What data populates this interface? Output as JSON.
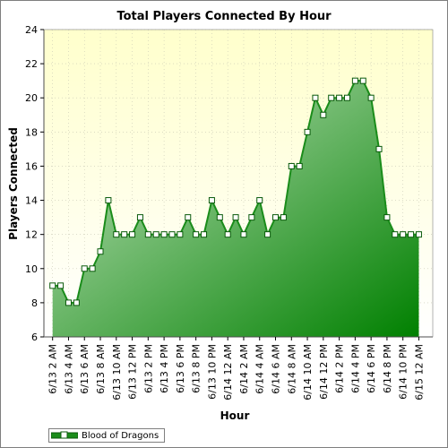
{
  "chart_data": {
    "type": "area",
    "title": "Total Players Connected By Hour",
    "xlabel": "Hour",
    "ylabel": "Players Connected",
    "ylim": [
      6,
      24
    ],
    "yticks": [
      6,
      8,
      10,
      12,
      14,
      16,
      18,
      20,
      22,
      24
    ],
    "grid": true,
    "legend_position": "bottom-left",
    "x": [
      "6/13 2 AM",
      "6/13 3 AM",
      "6/13 4 AM",
      "6/13 5 AM",
      "6/13 6 AM",
      "6/13 7 AM",
      "6/13 8 AM",
      "6/13 9 AM",
      "6/13 10 AM",
      "6/13 11 AM",
      "6/13 12 PM",
      "6/13 1 PM",
      "6/13 2 PM",
      "6/13 3 PM",
      "6/13 4 PM",
      "6/13 5 PM",
      "6/13 6 PM",
      "6/13 7 PM",
      "6/13 8 PM",
      "6/13 9 PM",
      "6/13 10 PM",
      "6/13 11 PM",
      "6/14 12 AM",
      "6/14 1 AM",
      "6/14 2 AM",
      "6/14 3 AM",
      "6/14 4 AM",
      "6/14 5 AM",
      "6/14 6 AM",
      "6/14 7 AM",
      "6/14 8 AM",
      "6/14 9 AM",
      "6/14 10 AM",
      "6/14 11 AM",
      "6/14 12 PM",
      "6/14 1 PM",
      "6/14 2 PM",
      "6/14 3 PM",
      "6/14 4 PM",
      "6/14 5 PM",
      "6/14 6 PM",
      "6/14 7 PM",
      "6/14 8 PM",
      "6/14 9 PM",
      "6/14 10 PM",
      "6/14 11 PM",
      "6/15 12 AM"
    ],
    "tick_labels": [
      "6/13 2 AM",
      "6/13 4 AM",
      "6/13 6 AM",
      "6/13 8 AM",
      "6/13 10 AM",
      "6/13 12 PM",
      "6/13 2 PM",
      "6/13 4 PM",
      "6/13 6 PM",
      "6/13 8 PM",
      "6/13 10 PM",
      "6/14 12 AM",
      "6/14 2 AM",
      "6/14 4 AM",
      "6/14 6 AM",
      "6/14 8 AM",
      "6/14 10 AM",
      "6/14 12 PM",
      "6/14 2 PM",
      "6/14 4 PM",
      "6/14 6 PM",
      "6/14 8 PM",
      "6/14 10 PM",
      "6/15 12 AM"
    ],
    "series": [
      {
        "name": "Blood of Dragons",
        "color": "#1a8c1a",
        "values": [
          9,
          9,
          8,
          8,
          10,
          10,
          11,
          14,
          12,
          12,
          12,
          13,
          12,
          12,
          12,
          12,
          12,
          13,
          12,
          12,
          14,
          13,
          12,
          13,
          12,
          13,
          14,
          12,
          13,
          13,
          16,
          16,
          18,
          20,
          19,
          20,
          20,
          20,
          21,
          21,
          20,
          17,
          13,
          12,
          12,
          12,
          12
        ]
      }
    ],
    "colors": {
      "plot_bg_top": "#ffffcc",
      "plot_bg_bottom": "#ffffff",
      "fill_light": "#c8e6c4",
      "fill_dark": "#008000",
      "line": "#1a8c1a"
    }
  }
}
